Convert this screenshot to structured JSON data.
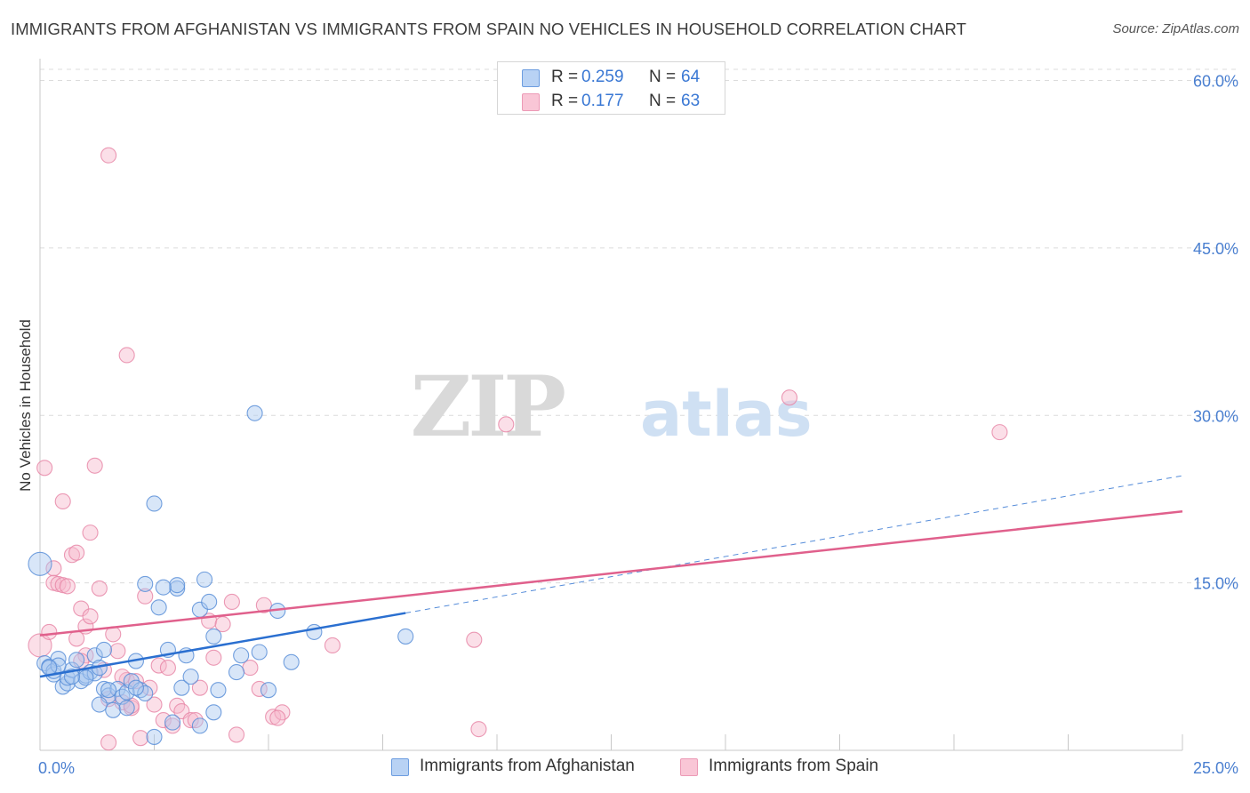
{
  "title": "IMMIGRANTS FROM AFGHANISTAN VS IMMIGRANTS FROM SPAIN NO VEHICLES IN HOUSEHOLD CORRELATION CHART",
  "source": "Source: ZipAtlas.com",
  "watermark": {
    "zip": "ZIP",
    "atlas": "atlas"
  },
  "legend": {
    "rows": [
      {
        "r_label": "R =",
        "r_value": "0.259",
        "n_label": "N =",
        "n_value": "64"
      },
      {
        "r_label": "R =",
        "r_value": "0.177",
        "n_label": "N =",
        "n_value": "63"
      }
    ]
  },
  "bottom_legend": [
    "Immigrants from Afghanistan",
    "Immigrants from Spain"
  ],
  "colors": {
    "afghanistan_fill": "#a9c8f0",
    "afghanistan_stroke": "#5a8fd8",
    "afghanistan_line": "#2a6fd0",
    "spain_fill": "#f6b8cc",
    "spain_stroke": "#e888a8",
    "spain_line": "#e0608c",
    "tick_text": "#4a7fd0",
    "grid": "#dcdcdc"
  },
  "chart_data": {
    "type": "scatter",
    "title": "IMMIGRANTS FROM AFGHANISTAN VS IMMIGRANTS FROM SPAIN NO VEHICLES IN HOUSEHOLD CORRELATION CHART",
    "xlabel": "",
    "ylabel": "No Vehicles in Household",
    "xlim": [
      0,
      25
    ],
    "ylim": [
      0,
      61
    ],
    "x_tick_labels": [
      "0.0%",
      "25.0%"
    ],
    "y_ticks": [
      15,
      30,
      45,
      60
    ],
    "y_tick_labels": [
      "15.0%",
      "30.0%",
      "45.0%",
      "60.0%"
    ],
    "legend_position": "top-center",
    "series": [
      {
        "name": "Immigrants from Afghanistan",
        "R": 0.259,
        "N": 64,
        "trend": {
          "x0": 0,
          "y0": 6.6,
          "x1": 8.0,
          "y1": 12.3,
          "dashed_to_x": 25,
          "dashed_to_y": 24.6
        },
        "points": [
          [
            0.0,
            16.7,
            "big"
          ],
          [
            0.1,
            7.8
          ],
          [
            0.2,
            7.5
          ],
          [
            0.3,
            6.8
          ],
          [
            0.3,
            7.1
          ],
          [
            0.4,
            8.2
          ],
          [
            0.5,
            5.7
          ],
          [
            0.6,
            6.0
          ],
          [
            0.6,
            6.5
          ],
          [
            0.7,
            7.2
          ],
          [
            0.8,
            8.1
          ],
          [
            0.9,
            6.2
          ],
          [
            1.0,
            6.7
          ],
          [
            1.1,
            7.0
          ],
          [
            1.2,
            8.5
          ],
          [
            1.2,
            6.9
          ],
          [
            1.3,
            7.4
          ],
          [
            1.4,
            9.0
          ],
          [
            1.4,
            5.5
          ],
          [
            1.5,
            4.9
          ],
          [
            1.6,
            3.6
          ],
          [
            1.7,
            5.5
          ],
          [
            1.8,
            4.8
          ],
          [
            1.9,
            5.2
          ],
          [
            2.0,
            6.2
          ],
          [
            2.1,
            8.0
          ],
          [
            2.2,
            5.4
          ],
          [
            2.3,
            14.9
          ],
          [
            2.3,
            5.1
          ],
          [
            2.5,
            1.2
          ],
          [
            2.5,
            22.1
          ],
          [
            2.6,
            12.8
          ],
          [
            2.8,
            9.0
          ],
          [
            2.9,
            2.5
          ],
          [
            3.0,
            14.5
          ],
          [
            3.0,
            14.8
          ],
          [
            3.1,
            5.6
          ],
          [
            3.2,
            8.5
          ],
          [
            3.3,
            6.6
          ],
          [
            3.5,
            12.6
          ],
          [
            3.5,
            2.2
          ],
          [
            3.6,
            15.3
          ],
          [
            3.7,
            13.3
          ],
          [
            3.8,
            3.4
          ],
          [
            3.8,
            10.2
          ],
          [
            3.9,
            5.4
          ],
          [
            4.3,
            7.0
          ],
          [
            4.4,
            8.5
          ],
          [
            4.7,
            30.2
          ],
          [
            4.8,
            8.8
          ],
          [
            5.0,
            5.4
          ],
          [
            5.2,
            12.5
          ],
          [
            5.5,
            7.9
          ],
          [
            6.0,
            10.6
          ],
          [
            8.0,
            10.2
          ],
          [
            0.4,
            7.6
          ],
          [
            1.9,
            3.8
          ],
          [
            1.5,
            5.4
          ],
          [
            2.1,
            5.6
          ],
          [
            2.7,
            14.6
          ],
          [
            0.2,
            7.4
          ],
          [
            1.0,
            6.5
          ],
          [
            0.7,
            6.6
          ],
          [
            1.3,
            4.1
          ]
        ]
      },
      {
        "name": "Immigrants from Spain",
        "R": 0.177,
        "N": 63,
        "trend": {
          "x0": 0,
          "y0": 10.3,
          "x1": 25,
          "y1": 21.4
        },
        "points": [
          [
            0.0,
            9.4,
            "big"
          ],
          [
            0.1,
            25.3
          ],
          [
            0.2,
            10.6
          ],
          [
            0.3,
            16.3
          ],
          [
            0.3,
            15.0
          ],
          [
            0.4,
            14.9
          ],
          [
            0.5,
            22.3
          ],
          [
            0.5,
            14.8
          ],
          [
            0.6,
            14.7
          ],
          [
            0.7,
            17.5
          ],
          [
            0.8,
            17.7
          ],
          [
            0.8,
            10.0
          ],
          [
            0.9,
            12.7
          ],
          [
            1.0,
            11.1
          ],
          [
            1.0,
            8.5
          ],
          [
            1.1,
            12.0
          ],
          [
            1.1,
            19.5
          ],
          [
            1.2,
            25.5
          ],
          [
            1.3,
            14.5
          ],
          [
            1.4,
            7.2
          ],
          [
            1.5,
            0.7
          ],
          [
            1.5,
            53.3
          ],
          [
            1.6,
            10.4
          ],
          [
            1.7,
            8.9
          ],
          [
            1.8,
            4.3
          ],
          [
            1.9,
            6.3
          ],
          [
            1.9,
            35.4
          ],
          [
            2.0,
            3.8
          ],
          [
            2.1,
            6.2
          ],
          [
            2.2,
            1.1
          ],
          [
            2.3,
            13.8
          ],
          [
            2.4,
            5.6
          ],
          [
            2.5,
            4.1
          ],
          [
            2.6,
            7.6
          ],
          [
            2.7,
            2.7
          ],
          [
            2.8,
            7.4
          ],
          [
            2.9,
            2.2
          ],
          [
            3.0,
            4.0
          ],
          [
            3.1,
            3.5
          ],
          [
            3.3,
            2.7
          ],
          [
            3.5,
            5.6
          ],
          [
            3.7,
            11.6
          ],
          [
            3.8,
            8.3
          ],
          [
            4.0,
            11.3
          ],
          [
            4.2,
            13.3
          ],
          [
            4.3,
            1.4
          ],
          [
            4.6,
            7.4
          ],
          [
            4.8,
            5.5
          ],
          [
            4.9,
            13.0
          ],
          [
            5.1,
            3.0
          ],
          [
            5.3,
            3.4
          ],
          [
            6.4,
            9.4
          ],
          [
            9.5,
            9.9
          ],
          [
            9.6,
            1.9
          ],
          [
            10.2,
            29.2
          ],
          [
            16.4,
            31.6
          ],
          [
            21.0,
            28.5
          ],
          [
            1.5,
            4.6
          ],
          [
            0.9,
            8.0
          ],
          [
            2.0,
            4.0
          ],
          [
            1.8,
            6.6
          ],
          [
            5.2,
            2.9
          ],
          [
            3.4,
            2.7
          ]
        ]
      }
    ]
  }
}
